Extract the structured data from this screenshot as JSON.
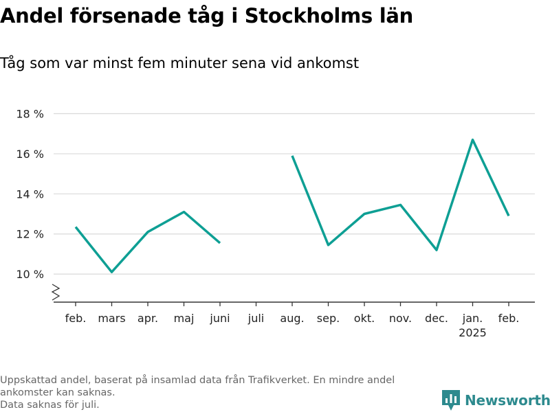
{
  "header": {
    "title": "Andel försenade tåg i Stockholms län",
    "subtitle": "Tåg som var minst fem minuter sena vid ankomst"
  },
  "footnote": {
    "line1": "Uppskattad andel, baserat på insamlad data från Trafikverket. En mindre andel ankomster kan saknas.",
    "line2": "Data saknas för juli."
  },
  "brand": {
    "name": "Newsworthy",
    "icon": "newsworthy-logo-icon",
    "color": "#2d8a8e"
  },
  "chart_data": {
    "type": "line",
    "categories": [
      "feb.",
      "mars",
      "apr.",
      "maj",
      "juni",
      "juli",
      "aug.",
      "sep.",
      "okt.",
      "nov.",
      "dec.",
      "jan.",
      "feb."
    ],
    "year_label": {
      "category_index": 11,
      "text": "2025"
    },
    "series": [
      {
        "color": "#0e9f94",
        "values": [
          12.35,
          10.1,
          12.1,
          13.1,
          11.55,
          null,
          15.9,
          11.45,
          13.0,
          13.45,
          11.2,
          16.7,
          12.9
        ]
      }
    ],
    "y_ticks": [
      10,
      12,
      14,
      16,
      18
    ],
    "y_tick_labels": [
      "10 %",
      "12 %",
      "14 %",
      "16 %",
      "18 %"
    ],
    "ylim": [
      8.6,
      18.6
    ],
    "y_axis_break": true,
    "grid": true,
    "xlabel": "",
    "ylabel": "",
    "colors": {
      "grid": "#d9d9d9",
      "axis": "#333333"
    }
  }
}
